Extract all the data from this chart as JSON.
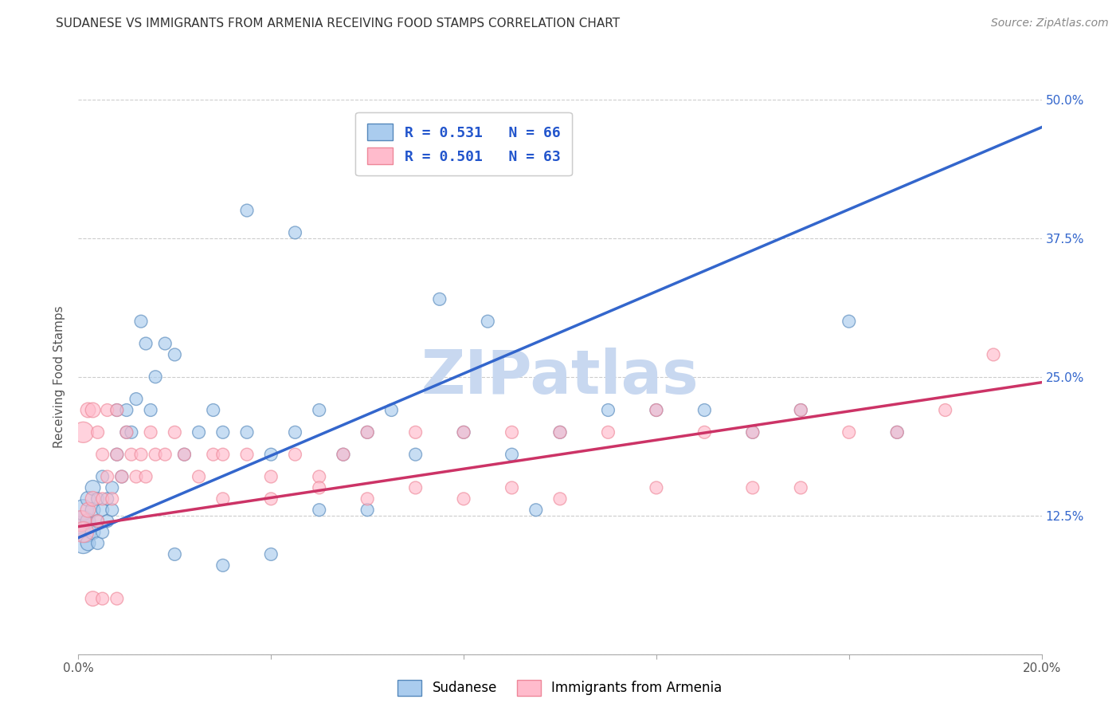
{
  "title": "SUDANESE VS IMMIGRANTS FROM ARMENIA RECEIVING FOOD STAMPS CORRELATION CHART",
  "source": "Source: ZipAtlas.com",
  "ylabel": "Receiving Food Stamps",
  "xlim": [
    0.0,
    0.2
  ],
  "ylim": [
    0.0,
    0.5
  ],
  "xticks": [
    0.0,
    0.04,
    0.08,
    0.12,
    0.16,
    0.2
  ],
  "xticklabels": [
    "0.0%",
    "",
    "",
    "",
    "",
    "20.0%"
  ],
  "yticks": [
    0.0,
    0.125,
    0.25,
    0.375,
    0.5
  ],
  "yticklabels_right": [
    "",
    "12.5%",
    "25.0%",
    "37.5%",
    "50.0%"
  ],
  "legend_blue_label": "R = 0.531   N = 66",
  "legend_pink_label": "R = 0.501   N = 63",
  "blue_color_face": "#AACCEE",
  "blue_color_edge": "#5588BB",
  "pink_color_face": "#FFBBCC",
  "pink_color_edge": "#EE8899",
  "trend_blue": [
    0.0,
    0.2,
    0.105,
    0.475
  ],
  "trend_pink": [
    0.0,
    0.2,
    0.115,
    0.245
  ],
  "trend_blue_color": "#3366CC",
  "trend_pink_color": "#CC3366",
  "watermark": "ZIPatlas",
  "watermark_color": "#C8D8F0",
  "legend_label_blue": "Sudanese",
  "legend_label_pink": "Immigrants from Armenia",
  "blue_scatter_x": [
    0.0005,
    0.001,
    0.001,
    0.001,
    0.0015,
    0.002,
    0.002,
    0.002,
    0.003,
    0.003,
    0.003,
    0.004,
    0.004,
    0.004,
    0.005,
    0.005,
    0.005,
    0.006,
    0.006,
    0.007,
    0.007,
    0.008,
    0.008,
    0.009,
    0.01,
    0.01,
    0.011,
    0.012,
    0.013,
    0.014,
    0.015,
    0.016,
    0.018,
    0.02,
    0.022,
    0.025,
    0.028,
    0.03,
    0.035,
    0.04,
    0.045,
    0.05,
    0.055,
    0.06,
    0.065,
    0.07,
    0.08,
    0.09,
    0.1,
    0.11,
    0.12,
    0.13,
    0.14,
    0.15,
    0.16,
    0.17,
    0.035,
    0.045,
    0.075,
    0.085,
    0.095,
    0.06,
    0.04,
    0.02,
    0.03,
    0.05
  ],
  "blue_scatter_y": [
    0.115,
    0.12,
    0.1,
    0.13,
    0.11,
    0.1,
    0.12,
    0.14,
    0.11,
    0.13,
    0.15,
    0.1,
    0.12,
    0.14,
    0.13,
    0.11,
    0.16,
    0.14,
    0.12,
    0.15,
    0.13,
    0.22,
    0.18,
    0.16,
    0.2,
    0.22,
    0.2,
    0.23,
    0.3,
    0.28,
    0.22,
    0.25,
    0.28,
    0.27,
    0.18,
    0.2,
    0.22,
    0.2,
    0.2,
    0.18,
    0.2,
    0.22,
    0.18,
    0.2,
    0.22,
    0.18,
    0.2,
    0.18,
    0.2,
    0.22,
    0.22,
    0.22,
    0.2,
    0.22,
    0.3,
    0.2,
    0.4,
    0.38,
    0.32,
    0.3,
    0.13,
    0.13,
    0.09,
    0.09,
    0.08,
    0.13
  ],
  "pink_scatter_x": [
    0.0005,
    0.001,
    0.001,
    0.002,
    0.002,
    0.003,
    0.003,
    0.004,
    0.004,
    0.005,
    0.005,
    0.006,
    0.006,
    0.007,
    0.008,
    0.008,
    0.009,
    0.01,
    0.011,
    0.012,
    0.013,
    0.014,
    0.015,
    0.016,
    0.018,
    0.02,
    0.022,
    0.025,
    0.028,
    0.03,
    0.035,
    0.04,
    0.045,
    0.05,
    0.055,
    0.06,
    0.07,
    0.08,
    0.09,
    0.1,
    0.11,
    0.12,
    0.13,
    0.14,
    0.15,
    0.16,
    0.17,
    0.18,
    0.19,
    0.03,
    0.04,
    0.05,
    0.06,
    0.07,
    0.08,
    0.09,
    0.1,
    0.12,
    0.14,
    0.15,
    0.003,
    0.005,
    0.008
  ],
  "pink_scatter_y": [
    0.12,
    0.11,
    0.2,
    0.13,
    0.22,
    0.14,
    0.22,
    0.12,
    0.2,
    0.14,
    0.18,
    0.16,
    0.22,
    0.14,
    0.18,
    0.22,
    0.16,
    0.2,
    0.18,
    0.16,
    0.18,
    0.16,
    0.2,
    0.18,
    0.18,
    0.2,
    0.18,
    0.16,
    0.18,
    0.18,
    0.18,
    0.16,
    0.18,
    0.16,
    0.18,
    0.2,
    0.2,
    0.2,
    0.2,
    0.2,
    0.2,
    0.22,
    0.2,
    0.2,
    0.22,
    0.2,
    0.2,
    0.22,
    0.27,
    0.14,
    0.14,
    0.15,
    0.14,
    0.15,
    0.14,
    0.15,
    0.14,
    0.15,
    0.15,
    0.15,
    0.05,
    0.05,
    0.05
  ]
}
